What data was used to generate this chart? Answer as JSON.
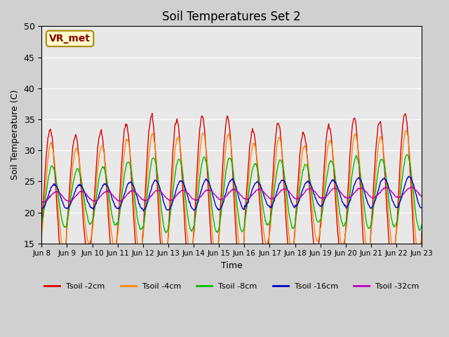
{
  "title": "Soil Temperatures Set 2",
  "xlabel": "Time",
  "ylabel": "Soil Temperature (C)",
  "ylim": [
    15,
    50
  ],
  "yticks": [
    15,
    20,
    25,
    30,
    35,
    40,
    45,
    50
  ],
  "annotation_text": "VR_met",
  "colors": {
    "2cm": "#dd0000",
    "4cm": "#ff8800",
    "8cm": "#00bb00",
    "16cm": "#0000cc",
    "32cm": "#bb00bb"
  },
  "legend_labels": [
    "Tsoil -2cm",
    "Tsoil -4cm",
    "Tsoil -8cm",
    "Tsoil -16cm",
    "Tsoil -32cm"
  ],
  "xtick_labels": [
    "Jun 8",
    "Jun 9",
    "Jun 10",
    "Jun 11",
    "Jun 12",
    "Jun 13",
    "Jun 14",
    "Jun 15",
    "Jun 16",
    "Jun 17",
    "Jun 18",
    "Jun 19",
    "Jun 20",
    "Jun 21",
    "Jun 22",
    "Jun 23"
  ],
  "n_days": 15,
  "samples_per_day": 48,
  "amp_var_2cm": [
    0.95,
    0.85,
    0.9,
    1.0,
    1.1,
    1.05,
    1.1,
    1.08,
    0.9,
    1.0,
    0.85,
    0.95,
    1.05,
    1.0,
    1.1
  ],
  "amp_var_4cm": [
    0.95,
    0.85,
    0.9,
    1.0,
    1.1,
    1.05,
    1.1,
    1.08,
    0.9,
    1.0,
    0.85,
    0.95,
    1.05,
    1.0,
    1.1
  ],
  "amp_var_8cm": [
    0.9,
    0.8,
    0.85,
    1.0,
    1.1,
    1.05,
    1.1,
    1.08,
    0.9,
    1.0,
    0.85,
    0.95,
    1.05,
    1.0,
    1.1
  ],
  "amp_var_16cm": [
    0.9,
    0.85,
    0.9,
    1.0,
    1.1,
    1.05,
    1.1,
    1.1,
    0.9,
    1.0,
    0.9,
    0.95,
    1.1,
    1.05,
    1.15
  ],
  "amp_var_32cm": [
    1.0,
    1.0,
    1.0,
    1.0,
    1.0,
    1.0,
    1.0,
    1.0,
    1.0,
    1.0,
    1.0,
    1.0,
    1.0,
    1.0,
    1.0
  ],
  "amp_2cm_base": 11.5,
  "amp_4cm_base": 9.0,
  "amp_8cm_base": 5.5,
  "amp_16cm_base": 2.2,
  "amp_32cm_base": 0.8,
  "phase_2cm_hr": 14,
  "phase_4cm_hr": 15,
  "phase_8cm_hr": 16,
  "phase_16cm_hr": 18,
  "phase_32cm_hr": 20
}
